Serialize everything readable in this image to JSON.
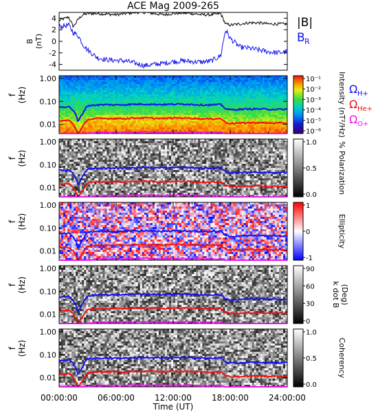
{
  "figure_title": "ACE Mag 2009-265",
  "x_axis": {
    "label": "Time (UT)",
    "ticks": [
      "00:00:00",
      "06:00:00",
      "12:00:00",
      "18:00:00",
      "24:00:00"
    ],
    "range_hours": [
      0,
      24
    ]
  },
  "freq_axis": {
    "label_f": "f",
    "label_unit": "(Hz)",
    "ticks": [
      "1.00",
      "0.10",
      "0.01"
    ],
    "range_hz": [
      0.004,
      1.3
    ],
    "scale": "log"
  },
  "cyclotron_labels": [
    {
      "symbol": "Ω",
      "sub": "H+",
      "color": "#1010ee"
    },
    {
      "symbol": "Ω",
      "sub": "He+",
      "color": "#ee1010"
    },
    {
      "symbol": "Ω",
      "sub": "O+",
      "color": "#ee10ee"
    }
  ],
  "colors": {
    "bmag": "#000000",
    "br": "#1010ee",
    "h_plus": "#1010ee",
    "he_plus": "#ee1010",
    "o_plus": "#ee10ee"
  },
  "panels": [
    {
      "id": "mag",
      "ylabel": "B",
      "yunit": "(nT)",
      "yticks": [
        "4",
        "2",
        "0",
        "-2",
        "-4"
      ],
      "legend": [
        {
          "text": "|B|",
          "color": "#000000"
        },
        {
          "text": "B",
          "sub": "R",
          "color": "#1010ee"
        }
      ]
    },
    {
      "id": "intensity",
      "cbar_label": "Intensity (nT²/Hz)",
      "cbar_ticks": [
        "10⁻¹",
        "10⁻²",
        "10⁻³",
        "10⁻⁴",
        "10⁻⁵",
        "10⁻⁶"
      ],
      "scheme": "rainbow"
    },
    {
      "id": "polarization",
      "cbar_label": "% Polarization",
      "cbar_ticks": [
        "1.0",
        "0.5",
        "0.0"
      ],
      "scheme": "gray"
    },
    {
      "id": "ellipticity",
      "cbar_label": "Ellipticity",
      "cbar_ticks": [
        "1",
        "0",
        "-1"
      ],
      "scheme": "bwr"
    },
    {
      "id": "kdotb",
      "cbar_label": "k dot B",
      "cbar_label2": "(Deg)",
      "cbar_ticks": [
        "90",
        "60",
        "30",
        "0"
      ],
      "scheme": "gray"
    },
    {
      "id": "coherency",
      "cbar_label": "Coherency",
      "cbar_ticks": [
        "1.0",
        "0.5",
        "0.0"
      ],
      "scheme": "gray"
    }
  ],
  "chart_data": {
    "type": "line",
    "title": "ACE Mag 2009-265",
    "xlabel": "Time (UT)",
    "x_hours": [
      0,
      1,
      1.5,
      2,
      2.5,
      3,
      4,
      5,
      6,
      7,
      8,
      9,
      10,
      11,
      12,
      13,
      14,
      15,
      16,
      17,
      17.5,
      18,
      19,
      20,
      21,
      22,
      23,
      24
    ],
    "series": [
      {
        "name": "|B|",
        "values": [
          3.6,
          4.2,
          2.5,
          3.8,
          4.6,
          4.8,
          4.8,
          4.7,
          4.6,
          4.8,
          5.0,
          5.0,
          4.8,
          4.6,
          4.8,
          4.9,
          4.8,
          4.6,
          4.6,
          4.8,
          3.0,
          2.8,
          3.0,
          3.2,
          3.2,
          3.0,
          3.0,
          3.0
        ]
      },
      {
        "name": "B_R",
        "values": [
          2.5,
          2.8,
          1.5,
          1.0,
          -0.5,
          -1.5,
          -2.8,
          -3.2,
          -3.3,
          -3.4,
          -3.8,
          -4.2,
          -4.0,
          -3.8,
          -3.5,
          -3.4,
          -3.5,
          -3.6,
          -3.4,
          -2.5,
          2.0,
          0.5,
          -1.0,
          -1.2,
          -1.5,
          -1.8,
          -2.0,
          -1.8
        ]
      }
    ],
    "ylim": [
      -5,
      5
    ],
    "ylabel": "B (nT)",
    "cyclotron_freqs_hz": {
      "H+": [
        0.055,
        0.06,
        0.04,
        0.012,
        0.03,
        0.065,
        0.07,
        0.072,
        0.07,
        0.072,
        0.075,
        0.076,
        0.074,
        0.073,
        0.075,
        0.076,
        0.074,
        0.07,
        0.07,
        0.073,
        0.048,
        0.043,
        0.045,
        0.047,
        0.047,
        0.045,
        0.045,
        0.045
      ],
      "He+": [
        0.014,
        0.015,
        0.01,
        0.003,
        0.008,
        0.016,
        0.018,
        0.018,
        0.018,
        0.018,
        0.019,
        0.019,
        0.0185,
        0.018,
        0.019,
        0.019,
        0.0185,
        0.0175,
        0.0175,
        0.018,
        0.012,
        0.011,
        0.0113,
        0.0118,
        0.0118,
        0.0113,
        0.0113,
        0.0113
      ],
      "O+": [
        0.0035,
        0.0038,
        0.0036,
        0.0035,
        0.0035,
        0.004,
        0.0045,
        0.0045,
        0.0044,
        0.0045,
        0.0047,
        0.0047,
        0.0046,
        0.0045,
        0.0047,
        0.0047,
        0.0046,
        0.0044,
        0.0044,
        0.0045,
        0.0035,
        0.0035,
        0.0035,
        0.0035,
        0.0035,
        0.0035,
        0.0035,
        0.0035
      ]
    }
  }
}
